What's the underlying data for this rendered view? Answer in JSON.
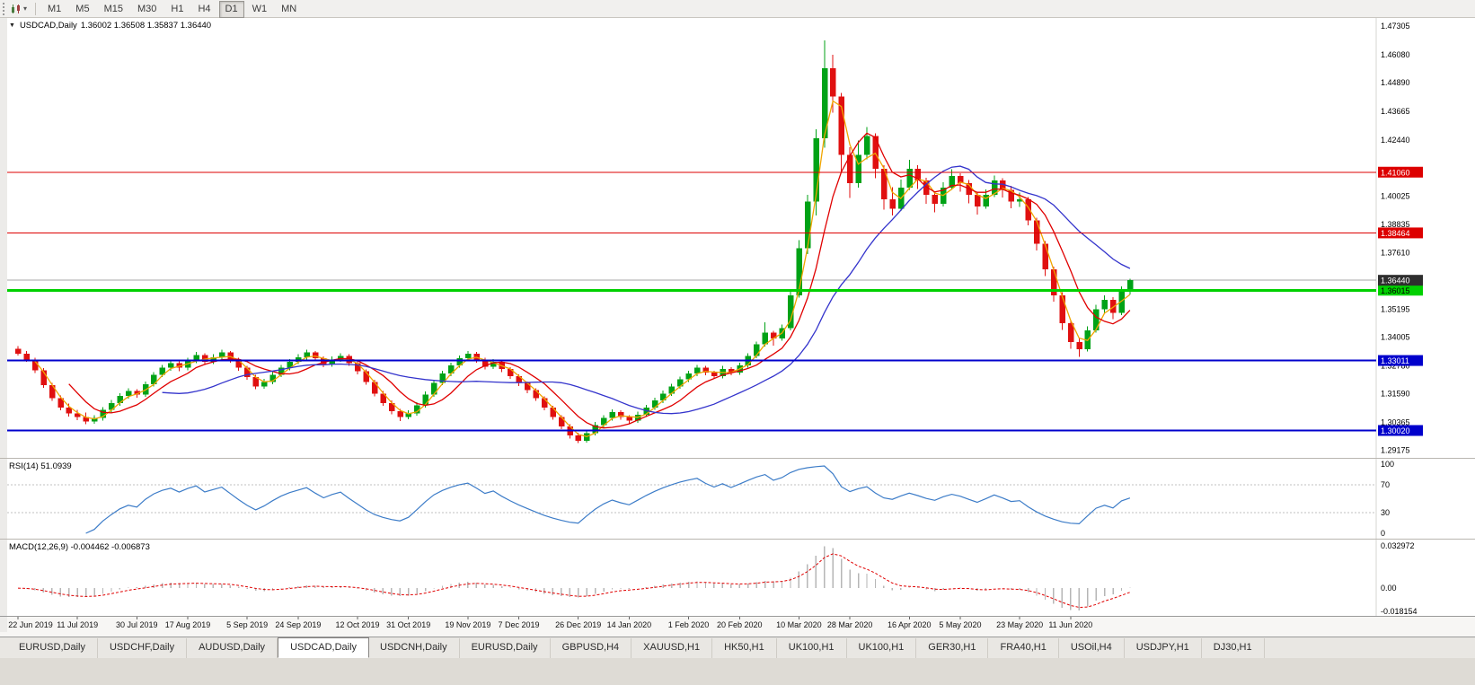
{
  "icons": {
    "toolbar_caret": "▾",
    "collapse_arrow": "▼"
  },
  "toolbar": {
    "timeframes": [
      {
        "label": "M1",
        "active": false
      },
      {
        "label": "M5",
        "active": false
      },
      {
        "label": "M15",
        "active": false
      },
      {
        "label": "M30",
        "active": false
      },
      {
        "label": "H1",
        "active": false
      },
      {
        "label": "H4",
        "active": false
      },
      {
        "label": "D1",
        "active": true
      },
      {
        "label": "W1",
        "active": false
      },
      {
        "label": "MN",
        "active": false
      }
    ]
  },
  "chart": {
    "collapse_icon": "▼",
    "title_symbol": "USDCAD,Daily",
    "title_ohlc": "1.36002 1.36508 1.35837 1.36440"
  },
  "chart_data": {
    "type": "candlestick",
    "symbol": "USDCAD",
    "period": "Daily",
    "last_ohlc": {
      "open": "1.36002",
      "high": "1.36508",
      "low": "1.35837",
      "close": "1.36440"
    },
    "y_axis_labels": [
      "1.47305",
      "1.46080",
      "1.44890",
      "1.43665",
      "1.42440",
      "1.40025",
      "1.38835",
      "1.37610",
      "1.35195",
      "1.34005",
      "1.32780",
      "1.31590",
      "1.30365",
      "1.29175"
    ],
    "x_labels": [
      {
        "text": "22 Jun 2019",
        "i": 0
      },
      {
        "text": "11 Jul 2019",
        "i": 7
      },
      {
        "text": "30 Jul 2019",
        "i": 14
      },
      {
        "text": "17 Aug 2019",
        "i": 20
      },
      {
        "text": "5 Sep 2019",
        "i": 27
      },
      {
        "text": "24 Sep 2019",
        "i": 33
      },
      {
        "text": "12 Oct 2019",
        "i": 40
      },
      {
        "text": "31 Oct 2019",
        "i": 46
      },
      {
        "text": "19 Nov 2019",
        "i": 53
      },
      {
        "text": "7 Dec 2019",
        "i": 59
      },
      {
        "text": "26 Dec 2019",
        "i": 66
      },
      {
        "text": "14 Jan 2020",
        "i": 72
      },
      {
        "text": "1 Feb 2020",
        "i": 79
      },
      {
        "text": "20 Feb 2020",
        "i": 85
      },
      {
        "text": "10 Mar 2020",
        "i": 92
      },
      {
        "text": "28 Mar 2020",
        "i": 98
      },
      {
        "text": "16 Apr 2020",
        "i": 105
      },
      {
        "text": "5 May 2020",
        "i": 111
      },
      {
        "text": "23 May 2020",
        "i": 118
      },
      {
        "text": "11 Jun 2020",
        "i": 124
      }
    ],
    "candles": [
      [
        1.3352,
        1.3362,
        1.3322,
        1.333
      ],
      [
        1.333,
        1.3342,
        1.3295,
        1.3305
      ],
      [
        1.3305,
        1.3312,
        1.3248,
        1.326
      ],
      [
        1.326,
        1.3268,
        1.3185,
        1.3195
      ],
      [
        1.3195,
        1.3205,
        1.3128,
        1.314
      ],
      [
        1.314,
        1.3152,
        1.3088,
        1.31
      ],
      [
        1.31,
        1.3118,
        1.3062,
        1.3075
      ],
      [
        1.3075,
        1.309,
        1.3046,
        1.306
      ],
      [
        1.306,
        1.3078,
        1.3028,
        1.304
      ],
      [
        1.304,
        1.3068,
        1.303,
        1.3055
      ],
      [
        1.3055,
        1.3102,
        1.3045,
        1.309
      ],
      [
        1.309,
        1.3132,
        1.3078,
        1.312
      ],
      [
        1.312,
        1.3162,
        1.3108,
        1.315
      ],
      [
        1.315,
        1.3182,
        1.3138,
        1.317
      ],
      [
        1.317,
        1.3178,
        1.3142,
        1.3155
      ],
      [
        1.3155,
        1.3212,
        1.3146,
        1.32
      ],
      [
        1.32,
        1.3252,
        1.319,
        1.324
      ],
      [
        1.324,
        1.3282,
        1.323,
        1.327
      ],
      [
        1.327,
        1.3302,
        1.3258,
        1.329
      ],
      [
        1.329,
        1.3298,
        1.3255,
        1.327
      ],
      [
        1.327,
        1.3312,
        1.326,
        1.33
      ],
      [
        1.33,
        1.3338,
        1.329,
        1.3325
      ],
      [
        1.3325,
        1.3332,
        1.3282,
        1.3295
      ],
      [
        1.3295,
        1.3328,
        1.3285,
        1.3315
      ],
      [
        1.3315,
        1.3348,
        1.3305,
        1.3335
      ],
      [
        1.3335,
        1.3342,
        1.3292,
        1.3305
      ],
      [
        1.3305,
        1.3312,
        1.3258,
        1.327
      ],
      [
        1.327,
        1.3278,
        1.3218,
        1.323
      ],
      [
        1.323,
        1.324,
        1.3178,
        1.319
      ],
      [
        1.319,
        1.3222,
        1.318,
        1.321
      ],
      [
        1.321,
        1.3252,
        1.32,
        1.324
      ],
      [
        1.324,
        1.3282,
        1.323,
        1.327
      ],
      [
        1.327,
        1.3308,
        1.326,
        1.3295
      ],
      [
        1.3295,
        1.3328,
        1.3285,
        1.3315
      ],
      [
        1.3315,
        1.3348,
        1.3305,
        1.3335
      ],
      [
        1.3335,
        1.3342,
        1.3298,
        1.331
      ],
      [
        1.331,
        1.3318,
        1.3272,
        1.3285
      ],
      [
        1.3285,
        1.3318,
        1.3275,
        1.3305
      ],
      [
        1.3305,
        1.3332,
        1.3295,
        1.332
      ],
      [
        1.332,
        1.3328,
        1.3278,
        1.329
      ],
      [
        1.329,
        1.3298,
        1.3242,
        1.3255
      ],
      [
        1.3255,
        1.3262,
        1.3198,
        1.321
      ],
      [
        1.321,
        1.3218,
        1.3148,
        1.316
      ],
      [
        1.316,
        1.317,
        1.3108,
        1.312
      ],
      [
        1.312,
        1.313,
        1.3072,
        1.3085
      ],
      [
        1.3085,
        1.3095,
        1.3042,
        1.306
      ],
      [
        1.306,
        1.3088,
        1.305,
        1.3075
      ],
      [
        1.3075,
        1.3122,
        1.3065,
        1.311
      ],
      [
        1.311,
        1.3168,
        1.31,
        1.3155
      ],
      [
        1.3155,
        1.3218,
        1.3145,
        1.3205
      ],
      [
        1.3205,
        1.3258,
        1.3195,
        1.3245
      ],
      [
        1.3245,
        1.3292,
        1.3235,
        1.328
      ],
      [
        1.328,
        1.3322,
        1.327,
        1.331
      ],
      [
        1.331,
        1.3342,
        1.33,
        1.333
      ],
      [
        1.333,
        1.3338,
        1.3292,
        1.3305
      ],
      [
        1.3305,
        1.3312,
        1.3262,
        1.3275
      ],
      [
        1.3275,
        1.3308,
        1.3265,
        1.3295
      ],
      [
        1.3295,
        1.3302,
        1.3252,
        1.3265
      ],
      [
        1.3265,
        1.3272,
        1.3222,
        1.3235
      ],
      [
        1.3235,
        1.3242,
        1.3192,
        1.3205
      ],
      [
        1.3205,
        1.3212,
        1.3162,
        1.3175
      ],
      [
        1.3175,
        1.3182,
        1.3128,
        1.314
      ],
      [
        1.314,
        1.3148,
        1.3088,
        1.31
      ],
      [
        1.31,
        1.3108,
        1.3048,
        1.306
      ],
      [
        1.306,
        1.3068,
        1.3008,
        1.302
      ],
      [
        1.302,
        1.3028,
        1.2968,
        1.298
      ],
      [
        1.298,
        1.2992,
        1.2948,
        1.2958
      ],
      [
        1.2958,
        1.3002,
        1.295,
        1.299
      ],
      [
        1.299,
        1.3038,
        1.298,
        1.3025
      ],
      [
        1.3025,
        1.3068,
        1.3015,
        1.3055
      ],
      [
        1.3055,
        1.3092,
        1.3045,
        1.308
      ],
      [
        1.308,
        1.3088,
        1.3048,
        1.306
      ],
      [
        1.306,
        1.3068,
        1.3032,
        1.3045
      ],
      [
        1.3045,
        1.3082,
        1.3035,
        1.307
      ],
      [
        1.307,
        1.3112,
        1.306,
        1.31
      ],
      [
        1.31,
        1.3142,
        1.309,
        1.313
      ],
      [
        1.313,
        1.3172,
        1.312,
        1.316
      ],
      [
        1.316,
        1.3202,
        1.315,
        1.319
      ],
      [
        1.319,
        1.3232,
        1.318,
        1.322
      ],
      [
        1.322,
        1.3258,
        1.321,
        1.3245
      ],
      [
        1.3245,
        1.3282,
        1.3235,
        1.327
      ],
      [
        1.327,
        1.3278,
        1.3238,
        1.325
      ],
      [
        1.325,
        1.3258,
        1.3222,
        1.3235
      ],
      [
        1.3235,
        1.3278,
        1.3225,
        1.3265
      ],
      [
        1.3265,
        1.3272,
        1.3238,
        1.325
      ],
      [
        1.325,
        1.3292,
        1.324,
        1.328
      ],
      [
        1.328,
        1.3332,
        1.327,
        1.332
      ],
      [
        1.332,
        1.3382,
        1.331,
        1.337
      ],
      [
        1.337,
        1.3465,
        1.336,
        1.342
      ],
      [
        1.342,
        1.3428,
        1.3365,
        1.3395
      ],
      [
        1.3395,
        1.3455,
        1.3385,
        1.344
      ],
      [
        1.344,
        1.3605,
        1.343,
        1.358
      ],
      [
        1.358,
        1.3815,
        1.357,
        1.378
      ],
      [
        1.378,
        1.401,
        1.3755,
        1.398
      ],
      [
        1.398,
        1.429,
        1.392,
        1.425
      ],
      [
        1.425,
        1.4669,
        1.421,
        1.455
      ],
      [
        1.455,
        1.4608,
        1.436,
        1.443
      ],
      [
        1.443,
        1.4445,
        1.4105,
        1.418
      ],
      [
        1.418,
        1.4212,
        1.3995,
        1.406
      ],
      [
        1.406,
        1.4242,
        1.404,
        1.418
      ],
      [
        1.418,
        1.4298,
        1.416,
        1.426
      ],
      [
        1.426,
        1.4272,
        1.408,
        1.412
      ],
      [
        1.412,
        1.4135,
        1.3945,
        1.399
      ],
      [
        1.399,
        1.4042,
        1.392,
        1.395
      ],
      [
        1.395,
        1.4075,
        1.394,
        1.404
      ],
      [
        1.404,
        1.4158,
        1.403,
        1.412
      ],
      [
        1.412,
        1.4135,
        1.4035,
        1.407
      ],
      [
        1.407,
        1.4082,
        1.397,
        1.401
      ],
      [
        1.401,
        1.4022,
        1.3935,
        1.397
      ],
      [
        1.397,
        1.4062,
        1.396,
        1.404
      ],
      [
        1.404,
        1.4118,
        1.403,
        1.409
      ],
      [
        1.409,
        1.4102,
        1.4022,
        1.406
      ],
      [
        1.406,
        1.4072,
        1.3972,
        1.401
      ],
      [
        1.401,
        1.402,
        1.3925,
        1.396
      ],
      [
        1.396,
        1.4032,
        1.395,
        1.401
      ],
      [
        1.401,
        1.4092,
        1.4,
        1.407
      ],
      [
        1.407,
        1.408,
        1.3998,
        1.403
      ],
      [
        1.403,
        1.4048,
        1.3952,
        1.398
      ],
      [
        1.398,
        1.4018,
        1.3958,
        1.399
      ],
      [
        1.399,
        1.4,
        1.3878,
        1.39
      ],
      [
        1.39,
        1.3912,
        1.3772,
        1.38
      ],
      [
        1.38,
        1.3812,
        1.3662,
        1.369
      ],
      [
        1.369,
        1.3702,
        1.3552,
        1.358
      ],
      [
        1.358,
        1.3592,
        1.3432,
        1.346
      ],
      [
        1.346,
        1.3472,
        1.3352,
        1.338
      ],
      [
        1.338,
        1.3398,
        1.3316,
        1.335
      ],
      [
        1.335,
        1.3448,
        1.334,
        1.343
      ],
      [
        1.343,
        1.354,
        1.342,
        1.352
      ],
      [
        1.352,
        1.358,
        1.35,
        1.356
      ],
      [
        1.356,
        1.3572,
        1.3478,
        1.3505
      ],
      [
        1.3505,
        1.3618,
        1.3495,
        1.36
      ],
      [
        1.36002,
        1.36508,
        1.35837,
        1.3644
      ]
    ],
    "levels": [
      {
        "label": "1.41060",
        "value": 1.4106,
        "color": "#dd0000",
        "text_color": "#ffffff",
        "width": 1
      },
      {
        "label": "1.38464",
        "value": 1.38464,
        "color": "#dd0000",
        "text_color": "#ffffff",
        "width": 1
      },
      {
        "label": "1.36015",
        "value": 1.36015,
        "color": "#00d000",
        "text_color": "#000000",
        "width": 3
      },
      {
        "label": "1.33011",
        "value": 1.33011,
        "color": "#0000cc",
        "text_color": "#ffffff",
        "width": 2
      },
      {
        "label": "1.30020",
        "value": 1.3002,
        "color": "#0000cc",
        "text_color": "#ffffff",
        "width": 2
      }
    ],
    "current_price": {
      "label": "1.36440",
      "value": 1.3644,
      "line_color": "#a6a6a6",
      "badge_color": "#2e2e2e",
      "text_color": "#ffffff"
    },
    "moving_averages": [
      {
        "name": "ma-fast",
        "color": "#f0a500",
        "period_compressed": 3
      },
      {
        "name": "ma-mid",
        "color": "#e00000",
        "period_compressed": 7
      },
      {
        "name": "ma-slow",
        "color": "#3434cc",
        "period_compressed": 18
      }
    ],
    "rsi": {
      "label": "RSI(14) 51.0939",
      "indicator": "RSI",
      "period": 14,
      "current": 51.0939,
      "period_compressed": 8,
      "levels": [
        70,
        30
      ],
      "axis_labels": [
        "100",
        "70",
        "30",
        "0"
      ],
      "line_color": "#3c7cc8"
    },
    "macd": {
      "label": "MACD(12,26,9) -0.004462 -0.006873",
      "params": "12,26,9",
      "main_value": -0.004462,
      "signal_value": -0.006873,
      "fast_compressed": 4,
      "slow_compressed": 9,
      "signal_compressed": 4,
      "axis_top": "0.032972",
      "axis_zero": "0.00",
      "axis_bottom": "-0.018154",
      "bar_color": "#b6b6b6",
      "signal_color": "#e00000"
    },
    "colors": {
      "bull": "#00a216",
      "bear": "#e01010",
      "dashed_level": "#c0c0c0",
      "axis_text": "#000000",
      "plot_bg": "#ffffff",
      "left_strip": "#ecebe9",
      "axis_sep": "#d6d4d0"
    }
  },
  "tabs": [
    {
      "label": "EURUSD,Daily",
      "active": false
    },
    {
      "label": "USDCHF,Daily",
      "active": false
    },
    {
      "label": "AUDUSD,Daily",
      "active": false
    },
    {
      "label": "USDCAD,Daily",
      "active": true
    },
    {
      "label": "USDCNH,Daily",
      "active": false
    },
    {
      "label": "EURUSD,Daily",
      "active": false
    },
    {
      "label": "GBPUSD,H4",
      "active": false
    },
    {
      "label": "XAUUSD,H1",
      "active": false
    },
    {
      "label": "HK50,H1",
      "active": false
    },
    {
      "label": "UK100,H1",
      "active": false
    },
    {
      "label": "UK100,H1",
      "active": false
    },
    {
      "label": "GER30,H1",
      "active": false
    },
    {
      "label": "FRA40,H1",
      "active": false
    },
    {
      "label": "USOil,H4",
      "active": false
    },
    {
      "label": "USDJPY,H1",
      "active": false
    },
    {
      "label": "DJ30,H1",
      "active": false
    }
  ]
}
